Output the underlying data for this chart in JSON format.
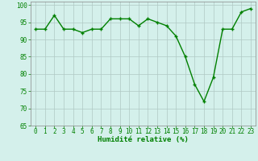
{
  "x": [
    0,
    1,
    2,
    3,
    4,
    5,
    6,
    7,
    8,
    9,
    10,
    11,
    12,
    13,
    14,
    15,
    16,
    17,
    18,
    19,
    20,
    21,
    22,
    23
  ],
  "y": [
    93,
    93,
    97,
    93,
    93,
    92,
    93,
    93,
    96,
    96,
    96,
    94,
    96,
    95,
    94,
    91,
    85,
    77,
    72,
    79,
    93,
    93,
    98,
    99
  ],
  "line_color": "#008000",
  "marker": "+",
  "bg_color": "#d4f0eb",
  "grid_color": "#b0c8c4",
  "xlabel": "Humidité relative (%)",
  "ylim": [
    65,
    101
  ],
  "xlim": [
    -0.5,
    23.5
  ],
  "yticks": [
    65,
    70,
    75,
    80,
    85,
    90,
    95,
    100
  ],
  "xtick_labels": [
    "0",
    "1",
    "2",
    "3",
    "4",
    "5",
    "6",
    "7",
    "8",
    "9",
    "10",
    "11",
    "12",
    "13",
    "14",
    "15",
    "16",
    "17",
    "18",
    "19",
    "20",
    "21",
    "22",
    "23"
  ],
  "xlabel_color": "#008000",
  "tick_color": "#008000",
  "font_size_xlabel": 6.5,
  "font_size_ticks": 5.5,
  "linewidth": 1.0,
  "marker_size": 3.5
}
